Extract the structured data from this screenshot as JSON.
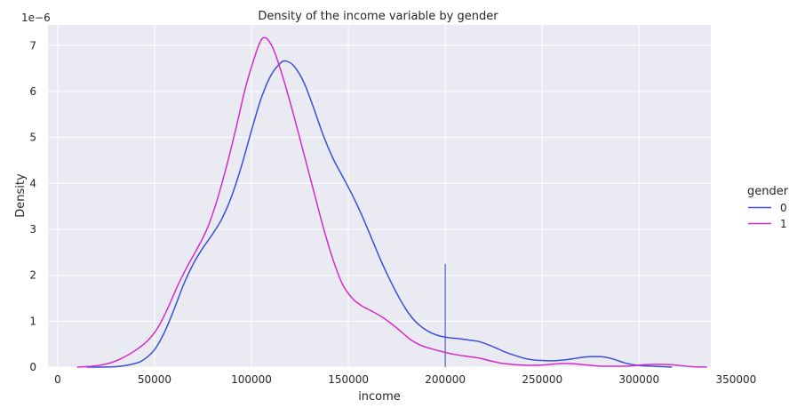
{
  "chart_data": {
    "type": "line",
    "title": "Density of the income variable by gender",
    "xlabel": "income",
    "ylabel": "Density",
    "y_scale_label": "1e−6",
    "xlim": [
      -5000,
      337000
    ],
    "ylim": [
      0,
      7.45
    ],
    "x_ticks": [
      0,
      50000,
      100000,
      150000,
      200000,
      250000,
      300000,
      350000
    ],
    "x_tick_labels": [
      "0",
      "50000",
      "100000",
      "150000",
      "200000",
      "250000",
      "300000",
      "350000"
    ],
    "y_ticks": [
      0,
      1,
      2,
      3,
      4,
      5,
      6,
      7
    ],
    "y_tick_labels": [
      "0",
      "1",
      "2",
      "3",
      "4",
      "5",
      "6",
      "7"
    ],
    "grid": true,
    "legend": {
      "title": "gender",
      "placement": "right"
    },
    "vertical_marker": {
      "x": 200000,
      "y_top": 2.25,
      "color": "#6a7ec0"
    },
    "series": [
      {
        "name": "0",
        "color": "#3b4fd6",
        "points": [
          [
            15000,
            0.0
          ],
          [
            30000,
            0.01
          ],
          [
            40000,
            0.08
          ],
          [
            45000,
            0.18
          ],
          [
            50000,
            0.38
          ],
          [
            55000,
            0.75
          ],
          [
            60000,
            1.25
          ],
          [
            65000,
            1.8
          ],
          [
            70000,
            2.25
          ],
          [
            75000,
            2.6
          ],
          [
            80000,
            2.9
          ],
          [
            85000,
            3.25
          ],
          [
            90000,
            3.75
          ],
          [
            95000,
            4.4
          ],
          [
            100000,
            5.15
          ],
          [
            105000,
            5.85
          ],
          [
            110000,
            6.35
          ],
          [
            115000,
            6.62
          ],
          [
            118000,
            6.66
          ],
          [
            122000,
            6.55
          ],
          [
            127000,
            6.2
          ],
          [
            132000,
            5.65
          ],
          [
            137000,
            5.05
          ],
          [
            142000,
            4.55
          ],
          [
            147000,
            4.15
          ],
          [
            152000,
            3.75
          ],
          [
            157000,
            3.3
          ],
          [
            162000,
            2.8
          ],
          [
            167000,
            2.3
          ],
          [
            172000,
            1.85
          ],
          [
            177000,
            1.45
          ],
          [
            182000,
            1.12
          ],
          [
            187000,
            0.9
          ],
          [
            192000,
            0.76
          ],
          [
            197000,
            0.68
          ],
          [
            202000,
            0.64
          ],
          [
            207000,
            0.62
          ],
          [
            212000,
            0.59
          ],
          [
            217000,
            0.56
          ],
          [
            222000,
            0.49
          ],
          [
            227000,
            0.4
          ],
          [
            232000,
            0.31
          ],
          [
            237000,
            0.24
          ],
          [
            242000,
            0.18
          ],
          [
            247000,
            0.15
          ],
          [
            252000,
            0.14
          ],
          [
            257000,
            0.14
          ],
          [
            262000,
            0.16
          ],
          [
            267000,
            0.19
          ],
          [
            272000,
            0.22
          ],
          [
            277000,
            0.23
          ],
          [
            282000,
            0.22
          ],
          [
            287000,
            0.17
          ],
          [
            292000,
            0.1
          ],
          [
            297000,
            0.05
          ],
          [
            302000,
            0.03
          ],
          [
            307000,
            0.02
          ],
          [
            312000,
            0.01
          ],
          [
            317000,
            0.0
          ]
        ]
      },
      {
        "name": "1",
        "color": "#d42bc9",
        "points": [
          [
            10000,
            0.0
          ],
          [
            20000,
            0.03
          ],
          [
            27000,
            0.09
          ],
          [
            32000,
            0.17
          ],
          [
            37000,
            0.28
          ],
          [
            42000,
            0.42
          ],
          [
            47000,
            0.6
          ],
          [
            52000,
            0.88
          ],
          [
            57000,
            1.3
          ],
          [
            62000,
            1.78
          ],
          [
            67000,
            2.2
          ],
          [
            72000,
            2.58
          ],
          [
            77000,
            3.0
          ],
          [
            82000,
            3.6
          ],
          [
            87000,
            4.35
          ],
          [
            92000,
            5.2
          ],
          [
            97000,
            6.1
          ],
          [
            102000,
            6.8
          ],
          [
            105000,
            7.12
          ],
          [
            107000,
            7.17
          ],
          [
            109000,
            7.1
          ],
          [
            112000,
            6.85
          ],
          [
            117000,
            6.2
          ],
          [
            122000,
            5.45
          ],
          [
            127000,
            4.65
          ],
          [
            132000,
            3.85
          ],
          [
            137000,
            3.05
          ],
          [
            142000,
            2.35
          ],
          [
            147000,
            1.8
          ],
          [
            152000,
            1.5
          ],
          [
            157000,
            1.33
          ],
          [
            162000,
            1.22
          ],
          [
            167000,
            1.1
          ],
          [
            172000,
            0.95
          ],
          [
            177000,
            0.78
          ],
          [
            182000,
            0.6
          ],
          [
            187000,
            0.48
          ],
          [
            192000,
            0.41
          ],
          [
            197000,
            0.35
          ],
          [
            202000,
            0.3
          ],
          [
            207000,
            0.26
          ],
          [
            212000,
            0.23
          ],
          [
            217000,
            0.2
          ],
          [
            222000,
            0.15
          ],
          [
            227000,
            0.1
          ],
          [
            232000,
            0.07
          ],
          [
            237000,
            0.05
          ],
          [
            242000,
            0.04
          ],
          [
            247000,
            0.04
          ],
          [
            252000,
            0.05
          ],
          [
            257000,
            0.07
          ],
          [
            262000,
            0.08
          ],
          [
            267000,
            0.07
          ],
          [
            272000,
            0.05
          ],
          [
            277000,
            0.03
          ],
          [
            282000,
            0.02
          ],
          [
            287000,
            0.02
          ],
          [
            292000,
            0.02
          ],
          [
            297000,
            0.03
          ],
          [
            302000,
            0.05
          ],
          [
            307000,
            0.06
          ],
          [
            312000,
            0.06
          ],
          [
            317000,
            0.05
          ],
          [
            322000,
            0.03
          ],
          [
            327000,
            0.01
          ],
          [
            335000,
            0.0
          ]
        ]
      }
    ]
  }
}
